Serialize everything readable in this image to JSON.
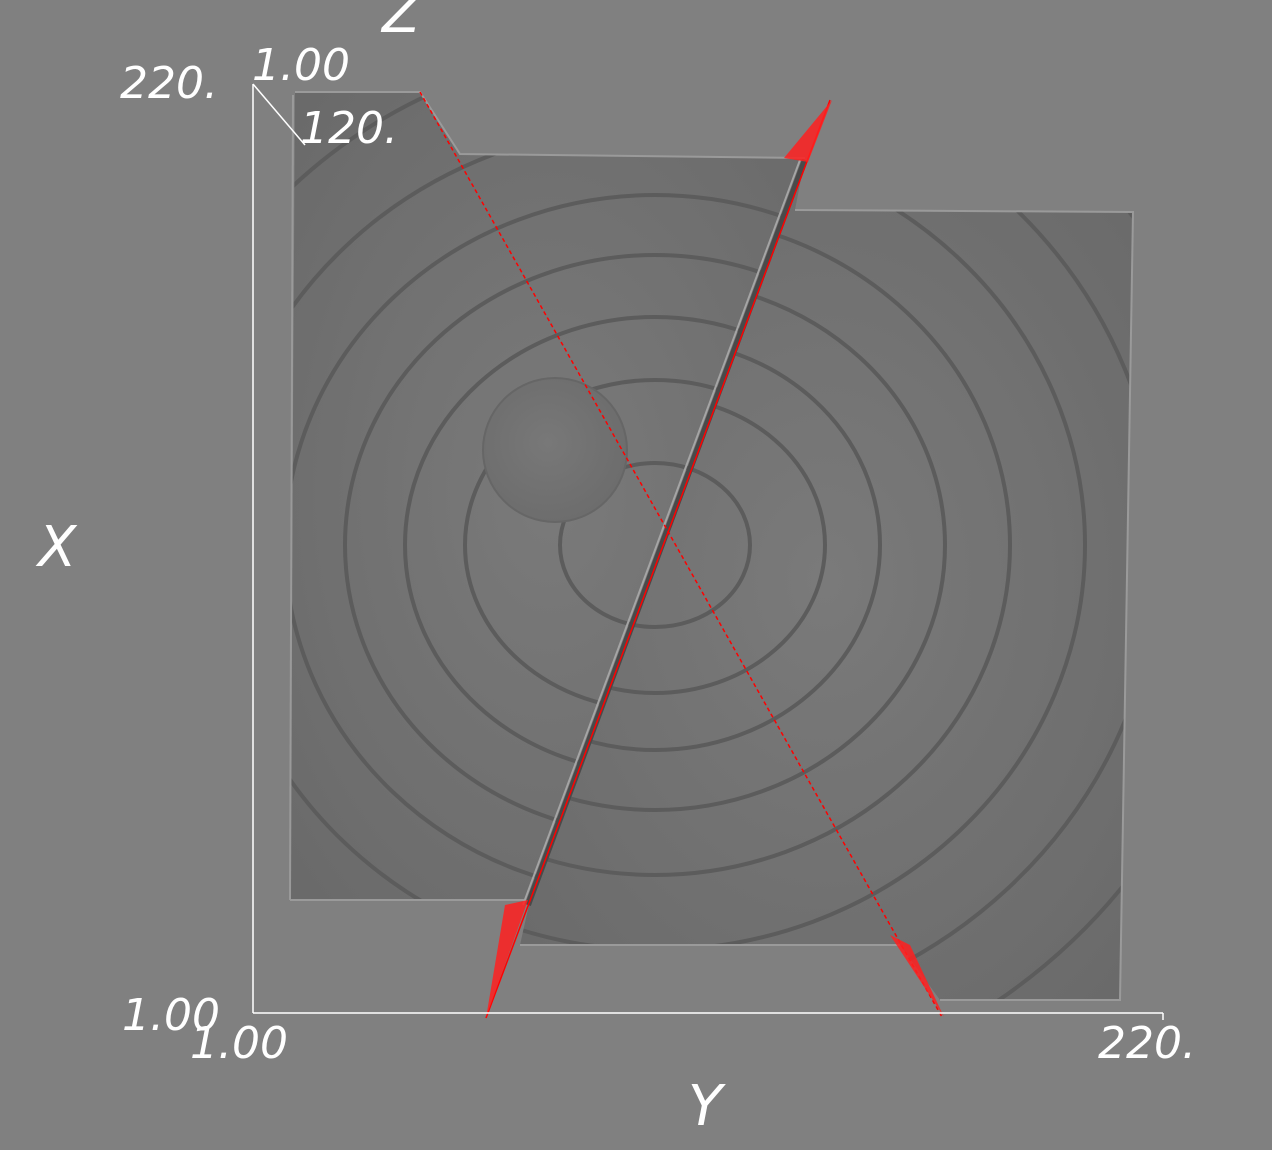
{
  "viewer": {
    "background_color": "#808080",
    "slice_color": "#717171",
    "ring_color": "#5a5a5a",
    "edge_color": "#ff0000",
    "axis_color": "#ffffff"
  },
  "axes": {
    "x": {
      "title": "X",
      "min_label": "1.00",
      "max_label": "220."
    },
    "y": {
      "title": "Y",
      "min_label": "1.00",
      "max_label": "220."
    },
    "z": {
      "title": "Z",
      "min_label": "1.00",
      "max_label": "120."
    }
  }
}
